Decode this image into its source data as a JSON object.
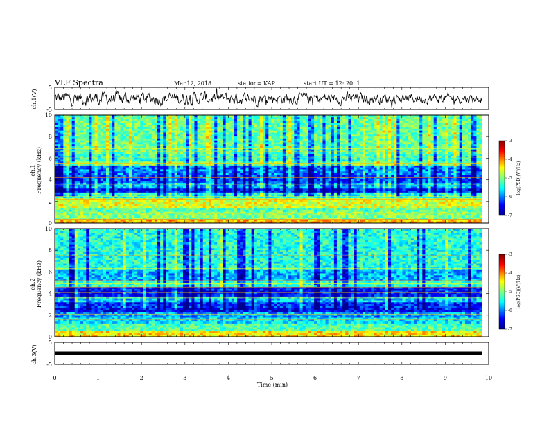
{
  "header": {
    "title": "VLF Spectra",
    "date": "Mar.12, 2018",
    "station": "station= KAP",
    "start": "start  UT =   12: 20: 1"
  },
  "chart_data": [
    {
      "type": "line",
      "name": "ch1-waveform",
      "ylabel": "ch.1(V)",
      "ylim": [
        -5,
        5
      ],
      "yticks": [
        "5",
        "-5"
      ],
      "xlim": [
        0,
        10
      ],
      "x_end_min": 9.85,
      "description_values": "noisy waveform oscillating roughly between -3 and +3 V, centered near 0"
    },
    {
      "type": "heatmap",
      "name": "ch1-spectrogram",
      "ylabel_line1": "ch.1",
      "ylabel_line2": "Frequency (kHz)",
      "ylim": [
        0,
        10
      ],
      "yticks": [
        "0",
        "2",
        "4",
        "6",
        "8",
        "10"
      ],
      "xlim": [
        0,
        10
      ],
      "x_end_min": 9.85,
      "bands_khz": [
        {
          "lo": 0.0,
          "hi": 0.4,
          "level": -4.2
        },
        {
          "lo": 0.4,
          "hi": 1.0,
          "level": -5.0
        },
        {
          "lo": 1.0,
          "hi": 1.5,
          "level": -5.2
        },
        {
          "lo": 1.5,
          "hi": 2.4,
          "level": -4.6
        },
        {
          "lo": 2.4,
          "hi": 2.9,
          "level": -5.4
        },
        {
          "lo": 2.9,
          "hi": 3.3,
          "level": -6.4
        },
        {
          "lo": 3.3,
          "hi": 3.7,
          "level": -5.8
        },
        {
          "lo": 3.7,
          "hi": 4.5,
          "level": -6.2
        },
        {
          "lo": 4.5,
          "hi": 5.3,
          "level": -6.0
        },
        {
          "lo": 5.3,
          "hi": 5.7,
          "level": -5.0
        },
        {
          "lo": 5.7,
          "hi": 6.5,
          "level": -5.3
        },
        {
          "lo": 6.5,
          "hi": 10.0,
          "level": -5.1
        }
      ],
      "colorbar": {
        "label": "log(PSD)(V²/Hz)",
        "range": [
          -7,
          -3
        ],
        "ticks": [
          "-3",
          "-4",
          "-5",
          "-6",
          "-7"
        ]
      }
    },
    {
      "type": "heatmap",
      "name": "ch2-spectrogram",
      "ylabel_line1": "ch.2",
      "ylabel_line2": "Frequency (kHz)",
      "ylim": [
        0,
        10
      ],
      "yticks": [
        "0",
        "2",
        "4",
        "6",
        "8",
        "10"
      ],
      "xlim": [
        0,
        10
      ],
      "x_end_min": 9.85,
      "bands_khz": [
        {
          "lo": 0.0,
          "hi": 0.5,
          "level": -4.4
        },
        {
          "lo": 0.5,
          "hi": 1.2,
          "level": -5.2
        },
        {
          "lo": 1.2,
          "hi": 1.8,
          "level": -5.6
        },
        {
          "lo": 1.8,
          "hi": 2.3,
          "level": -5.9
        },
        {
          "lo": 2.3,
          "hi": 2.7,
          "level": -6.5
        },
        {
          "lo": 2.7,
          "hi": 3.3,
          "level": -6.3
        },
        {
          "lo": 3.3,
          "hi": 3.8,
          "level": -5.7
        },
        {
          "lo": 3.8,
          "hi": 4.6,
          "level": -6.4
        },
        {
          "lo": 4.6,
          "hi": 5.2,
          "level": -5.3
        },
        {
          "lo": 5.2,
          "hi": 6.2,
          "level": -5.8
        },
        {
          "lo": 6.2,
          "hi": 10.0,
          "level": -5.4
        }
      ],
      "colorbar": {
        "label": "log(PSD)(V²/Hz)",
        "range": [
          -7,
          -3
        ],
        "ticks": [
          "-3",
          "-4",
          "-5",
          "-6",
          "-7"
        ]
      }
    },
    {
      "type": "line",
      "name": "ch3-waveform",
      "ylabel": "ch.3(V)",
      "ylim": [
        -5,
        5
      ],
      "yticks": [
        "5",
        "-5"
      ],
      "xlim": [
        0,
        10
      ],
      "x_end_min": 9.85,
      "constant_value": 0.0
    }
  ],
  "xaxis": {
    "label": "Time  (min)",
    "ticks": [
      "0",
      "1",
      "2",
      "3",
      "4",
      "5",
      "6",
      "7",
      "8",
      "9",
      "10"
    ]
  },
  "colors": {
    "colormap": [
      "#00008f",
      "#0000ff",
      "#00ffff",
      "#80ff80",
      "#ffff00",
      "#ff0000",
      "#800000"
    ]
  }
}
